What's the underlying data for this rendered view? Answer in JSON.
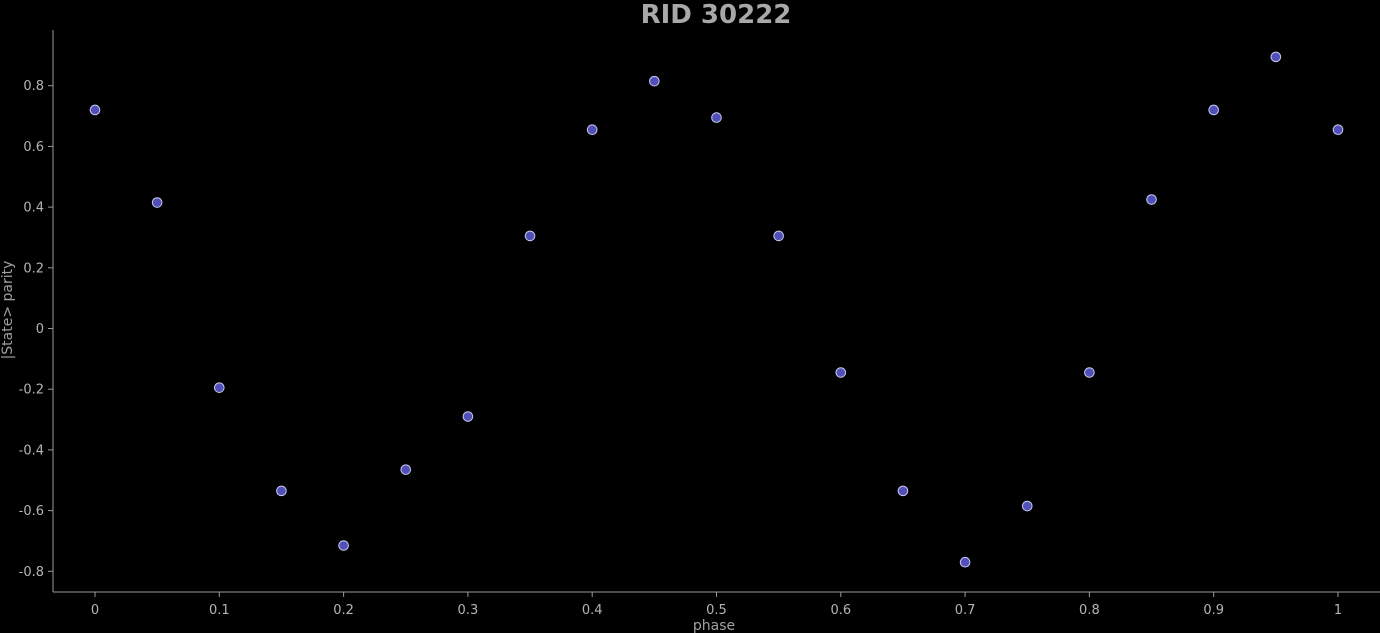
{
  "chart_data": {
    "type": "scatter",
    "title": "RID 30222",
    "xlabel": "phase",
    "ylabel": "|State> parity",
    "xlim": [
      -0.035,
      1.035
    ],
    "ylim": [
      -0.865,
      0.985
    ],
    "x_ticks": [
      0,
      0.1,
      0.2,
      0.3,
      0.4,
      0.5,
      0.6,
      0.7,
      0.8,
      0.9,
      1
    ],
    "x_tick_labels": [
      "0",
      "0.1",
      "0.2",
      "0.3",
      "0.4",
      "0.5",
      "0.6",
      "0.7",
      "0.8",
      "0.9",
      "1"
    ],
    "y_ticks": [
      -0.8,
      -0.6,
      -0.4,
      -0.2,
      0,
      0.2,
      0.4,
      0.6,
      0.8
    ],
    "y_tick_labels": [
      "-0.8",
      "-0.6",
      "-0.4",
      "-0.2",
      "0",
      "0.2",
      "0.4",
      "0.6",
      "0.8"
    ],
    "grid": false,
    "series": [
      {
        "x": [
          0,
          0.05,
          0.1,
          0.15,
          0.2,
          0.25,
          0.3,
          0.35,
          0.4,
          0.45,
          0.5,
          0.55,
          0.6,
          0.65,
          0.7,
          0.75,
          0.8,
          0.85,
          0.9,
          0.95,
          1
        ],
        "y": [
          0.72,
          0.415,
          -0.195,
          -0.535,
          -0.715,
          -0.465,
          -0.29,
          0.305,
          0.655,
          0.815,
          0.695,
          0.305,
          -0.145,
          -0.535,
          -0.77,
          -0.585,
          -0.145,
          0.425,
          0.72,
          0.895,
          0.655
        ]
      }
    ],
    "colors": {
      "background": "#000000",
      "marker_fill": "#5050b8",
      "marker_stroke": "#c8c8f0",
      "axis": "#9a9a9a",
      "text": "#b4b4b4"
    }
  }
}
